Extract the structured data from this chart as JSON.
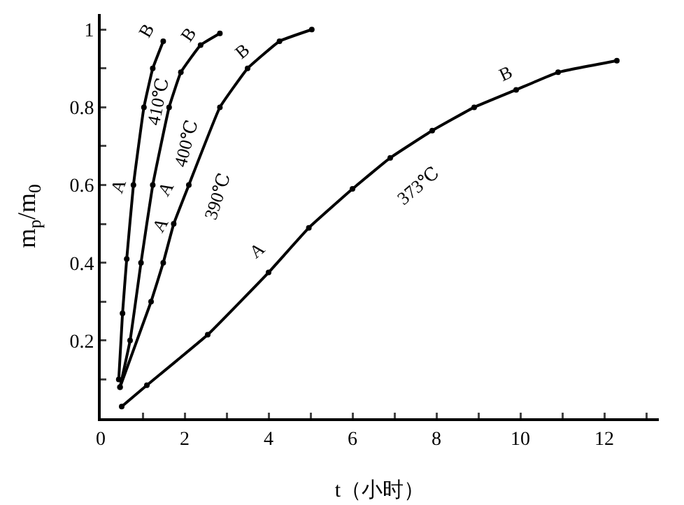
{
  "chart_data": {
    "type": "line",
    "xlabel": "t（小时）",
    "ylabel": "m$_{p}$/m$_{0}$",
    "xlim": [
      0,
      13.3
    ],
    "ylim": [
      0,
      1.04
    ],
    "xticks": [
      0,
      2,
      4,
      6,
      8,
      10,
      12,
      {
        "value": 1,
        "label": null
      },
      {
        "value": 3,
        "label": null
      },
      {
        "value": 5,
        "label": null
      },
      {
        "value": 7,
        "label": null
      },
      {
        "value": 9,
        "label": null
      },
      {
        "value": 11,
        "label": null
      },
      {
        "value": 13,
        "label": null
      }
    ],
    "yticks": [
      0.2,
      0.4,
      0.6,
      0.8,
      1.0,
      {
        "value": 0.1,
        "label": null
      },
      {
        "value": 0.3,
        "label": null
      },
      {
        "value": 0.5,
        "label": null
      },
      {
        "value": 0.7,
        "label": null
      },
      {
        "value": 0.9,
        "label": null
      }
    ],
    "marker": "circle",
    "line_style": "solid",
    "grid": false,
    "legend": false,
    "series": [
      {
        "name": "410℃",
        "color": "#000000",
        "x": [
          0.43,
          0.52,
          0.62,
          0.78,
          1.03,
          1.24,
          1.49
        ],
        "values": [
          0.1,
          0.27,
          0.41,
          0.6,
          0.8,
          0.9,
          0.97
        ]
      },
      {
        "name": "400℃",
        "color": "#000000",
        "x": [
          0.46,
          0.7,
          0.96,
          1.24,
          1.63,
          1.91,
          2.38,
          2.84
        ],
        "values": [
          0.08,
          0.2,
          0.4,
          0.6,
          0.8,
          0.89,
          0.96,
          0.99
        ]
      },
      {
        "name": "390℃",
        "color": "#000000",
        "x": [
          0.46,
          1.2,
          1.49,
          1.74,
          2.1,
          2.84,
          3.5,
          4.26,
          5.03
        ],
        "values": [
          0.08,
          0.3,
          0.4,
          0.5,
          0.6,
          0.8,
          0.9,
          0.97,
          1.0
        ]
      },
      {
        "name": "373℃",
        "color": "#000000",
        "x": [
          0.5,
          1.1,
          2.55,
          4.0,
          4.96,
          6.0,
          6.9,
          7.9,
          8.9,
          9.9,
          10.9,
          12.3
        ],
        "values": [
          0.03,
          0.085,
          0.215,
          0.375,
          0.49,
          0.59,
          0.67,
          0.74,
          0.8,
          0.845,
          0.89,
          0.92
        ]
      }
    ],
    "annotations": [
      {
        "text": "A",
        "x": 0.78,
        "y": 0.6
      },
      {
        "text": "B",
        "x": 1.49,
        "y": 0.97
      },
      {
        "text": "A",
        "x": 1.24,
        "y": 0.6
      },
      {
        "text": "B",
        "x": 2.38,
        "y": 0.96
      },
      {
        "text": "A",
        "x": 1.74,
        "y": 0.5
      },
      {
        "text": "B",
        "x": 3.5,
        "y": 0.9
      },
      {
        "text": "A",
        "x": 4.0,
        "y": 0.375
      },
      {
        "text": "B",
        "x": 9.9,
        "y": 0.845
      }
    ]
  }
}
